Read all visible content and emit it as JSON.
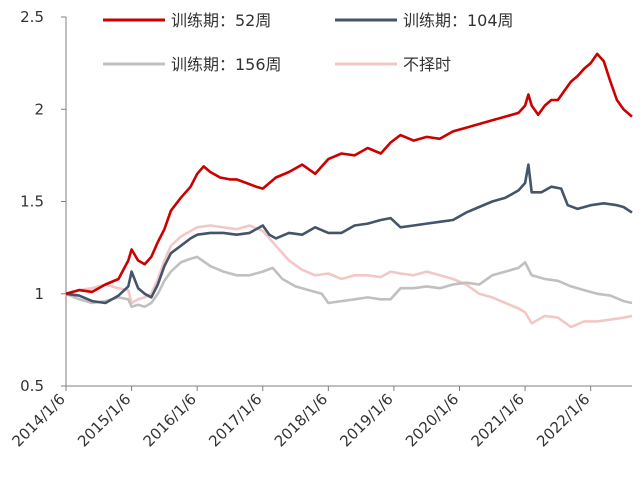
{
  "chart_data": {
    "type": "line",
    "title": "",
    "xlabel": "",
    "ylabel": "",
    "ylim": [
      0.5,
      2.5
    ],
    "y_ticks": [
      "0.5",
      "1",
      "1.5",
      "2",
      "2.5"
    ],
    "x_tick_labels": [
      "2014/1/6",
      "2015/1/6",
      "2016/1/6",
      "2017/1/6",
      "2018/1/6",
      "2019/1/6",
      "2020/1/6",
      "2021/1/6",
      "2022/1/6"
    ],
    "x_range": [
      2014.0,
      2022.63
    ],
    "grid": false,
    "legend_position": "top",
    "series": [
      {
        "name": "训练期：52周",
        "color": "#cc0000",
        "x": [
          2014.0,
          2014.2,
          2014.4,
          2014.6,
          2014.8,
          2014.95,
          2015.0,
          2015.1,
          2015.2,
          2015.3,
          2015.4,
          2015.5,
          2015.6,
          2015.75,
          2015.9,
          2016.0,
          2016.1,
          2016.2,
          2016.35,
          2016.5,
          2016.6,
          2016.75,
          2016.9,
          2017.0,
          2017.2,
          2017.4,
          2017.6,
          2017.8,
          2018.0,
          2018.2,
          2018.4,
          2018.6,
          2018.8,
          2018.95,
          2019.1,
          2019.3,
          2019.5,
          2019.7,
          2019.9,
          2020.1,
          2020.3,
          2020.5,
          2020.7,
          2020.9,
          2021.0,
          2021.05,
          2021.1,
          2021.2,
          2021.3,
          2021.4,
          2021.5,
          2021.6,
          2021.7,
          2021.8,
          2021.9,
          2022.0,
          2022.1,
          2022.2,
          2022.3,
          2022.4,
          2022.5,
          2022.63
        ],
        "values": [
          1.0,
          1.02,
          1.01,
          1.05,
          1.08,
          1.18,
          1.24,
          1.18,
          1.16,
          1.2,
          1.28,
          1.35,
          1.45,
          1.52,
          1.58,
          1.65,
          1.69,
          1.66,
          1.63,
          1.62,
          1.62,
          1.6,
          1.58,
          1.57,
          1.63,
          1.66,
          1.7,
          1.65,
          1.73,
          1.76,
          1.75,
          1.79,
          1.76,
          1.82,
          1.86,
          1.83,
          1.85,
          1.84,
          1.88,
          1.9,
          1.92,
          1.94,
          1.96,
          1.98,
          2.02,
          2.08,
          2.02,
          1.97,
          2.02,
          2.05,
          2.05,
          2.1,
          2.15,
          2.18,
          2.22,
          2.25,
          2.3,
          2.26,
          2.15,
          2.05,
          2.0,
          1.96
        ]
      },
      {
        "name": "训练期：104周",
        "color": "#44546a",
        "x": [
          2014.0,
          2014.2,
          2014.4,
          2014.6,
          2014.8,
          2014.95,
          2015.0,
          2015.1,
          2015.2,
          2015.3,
          2015.4,
          2015.5,
          2015.6,
          2015.75,
          2015.9,
          2016.0,
          2016.2,
          2016.4,
          2016.6,
          2016.8,
          2017.0,
          2017.1,
          2017.2,
          2017.4,
          2017.6,
          2017.8,
          2018.0,
          2018.2,
          2018.4,
          2018.6,
          2018.8,
          2018.95,
          2019.1,
          2019.3,
          2019.5,
          2019.7,
          2019.9,
          2020.1,
          2020.3,
          2020.5,
          2020.7,
          2020.9,
          2021.0,
          2021.05,
          2021.1,
          2021.25,
          2021.4,
          2021.55,
          2021.65,
          2021.8,
          2022.0,
          2022.2,
          2022.4,
          2022.5,
          2022.63
        ],
        "values": [
          1.0,
          0.99,
          0.96,
          0.95,
          0.99,
          1.04,
          1.12,
          1.03,
          1.0,
          0.98,
          1.05,
          1.15,
          1.22,
          1.26,
          1.3,
          1.32,
          1.33,
          1.33,
          1.32,
          1.33,
          1.37,
          1.32,
          1.3,
          1.33,
          1.32,
          1.36,
          1.33,
          1.33,
          1.37,
          1.38,
          1.4,
          1.41,
          1.36,
          1.37,
          1.38,
          1.39,
          1.4,
          1.44,
          1.47,
          1.5,
          1.52,
          1.56,
          1.6,
          1.7,
          1.55,
          1.55,
          1.58,
          1.57,
          1.48,
          1.46,
          1.48,
          1.49,
          1.48,
          1.47,
          1.44
        ]
      },
      {
        "name": "训练期：156周",
        "color": "#c0c0c0",
        "x": [
          2014.0,
          2014.2,
          2014.4,
          2014.6,
          2014.8,
          2014.95,
          2015.0,
          2015.1,
          2015.2,
          2015.3,
          2015.4,
          2015.5,
          2015.6,
          2015.75,
          2015.9,
          2016.0,
          2016.2,
          2016.4,
          2016.6,
          2016.8,
          2017.0,
          2017.15,
          2017.3,
          2017.5,
          2017.7,
          2017.9,
          2018.0,
          2018.2,
          2018.4,
          2018.6,
          2018.8,
          2018.95,
          2019.1,
          2019.3,
          2019.5,
          2019.7,
          2019.9,
          2020.1,
          2020.3,
          2020.5,
          2020.7,
          2020.9,
          2021.0,
          2021.1,
          2021.3,
          2021.5,
          2021.7,
          2021.9,
          2022.1,
          2022.3,
          2022.5,
          2022.63
        ],
        "values": [
          1.0,
          0.97,
          0.95,
          0.96,
          0.98,
          0.97,
          0.93,
          0.94,
          0.93,
          0.95,
          1.0,
          1.07,
          1.12,
          1.17,
          1.19,
          1.2,
          1.15,
          1.12,
          1.1,
          1.1,
          1.12,
          1.14,
          1.08,
          1.04,
          1.02,
          1.0,
          0.95,
          0.96,
          0.97,
          0.98,
          0.97,
          0.97,
          1.03,
          1.03,
          1.04,
          1.03,
          1.05,
          1.06,
          1.05,
          1.1,
          1.12,
          1.14,
          1.17,
          1.1,
          1.08,
          1.07,
          1.04,
          1.02,
          1.0,
          0.99,
          0.96,
          0.95
        ]
      },
      {
        "name": "不择时",
        "color": "#f4c7c7",
        "x": [
          2014.0,
          2014.2,
          2014.4,
          2014.6,
          2014.8,
          2014.95,
          2015.0,
          2015.1,
          2015.2,
          2015.3,
          2015.4,
          2015.5,
          2015.6,
          2015.75,
          2015.9,
          2016.0,
          2016.2,
          2016.4,
          2016.6,
          2016.8,
          2017.0,
          2017.2,
          2017.4,
          2017.6,
          2017.8,
          2018.0,
          2018.2,
          2018.4,
          2018.6,
          2018.8,
          2018.95,
          2019.1,
          2019.3,
          2019.5,
          2019.7,
          2019.9,
          2020.1,
          2020.3,
          2020.5,
          2020.7,
          2020.9,
          2021.0,
          2021.1,
          2021.3,
          2021.5,
          2021.7,
          2021.9,
          2022.1,
          2022.3,
          2022.5,
          2022.63
        ],
        "values": [
          1.0,
          1.02,
          1.03,
          1.05,
          1.03,
          1.02,
          0.95,
          0.97,
          0.98,
          1.0,
          1.08,
          1.18,
          1.26,
          1.31,
          1.34,
          1.36,
          1.37,
          1.36,
          1.35,
          1.37,
          1.34,
          1.26,
          1.18,
          1.13,
          1.1,
          1.11,
          1.08,
          1.1,
          1.1,
          1.09,
          1.12,
          1.11,
          1.1,
          1.12,
          1.1,
          1.08,
          1.05,
          1.0,
          0.98,
          0.95,
          0.92,
          0.9,
          0.84,
          0.88,
          0.87,
          0.82,
          0.85,
          0.85,
          0.86,
          0.87,
          0.88
        ]
      }
    ]
  }
}
